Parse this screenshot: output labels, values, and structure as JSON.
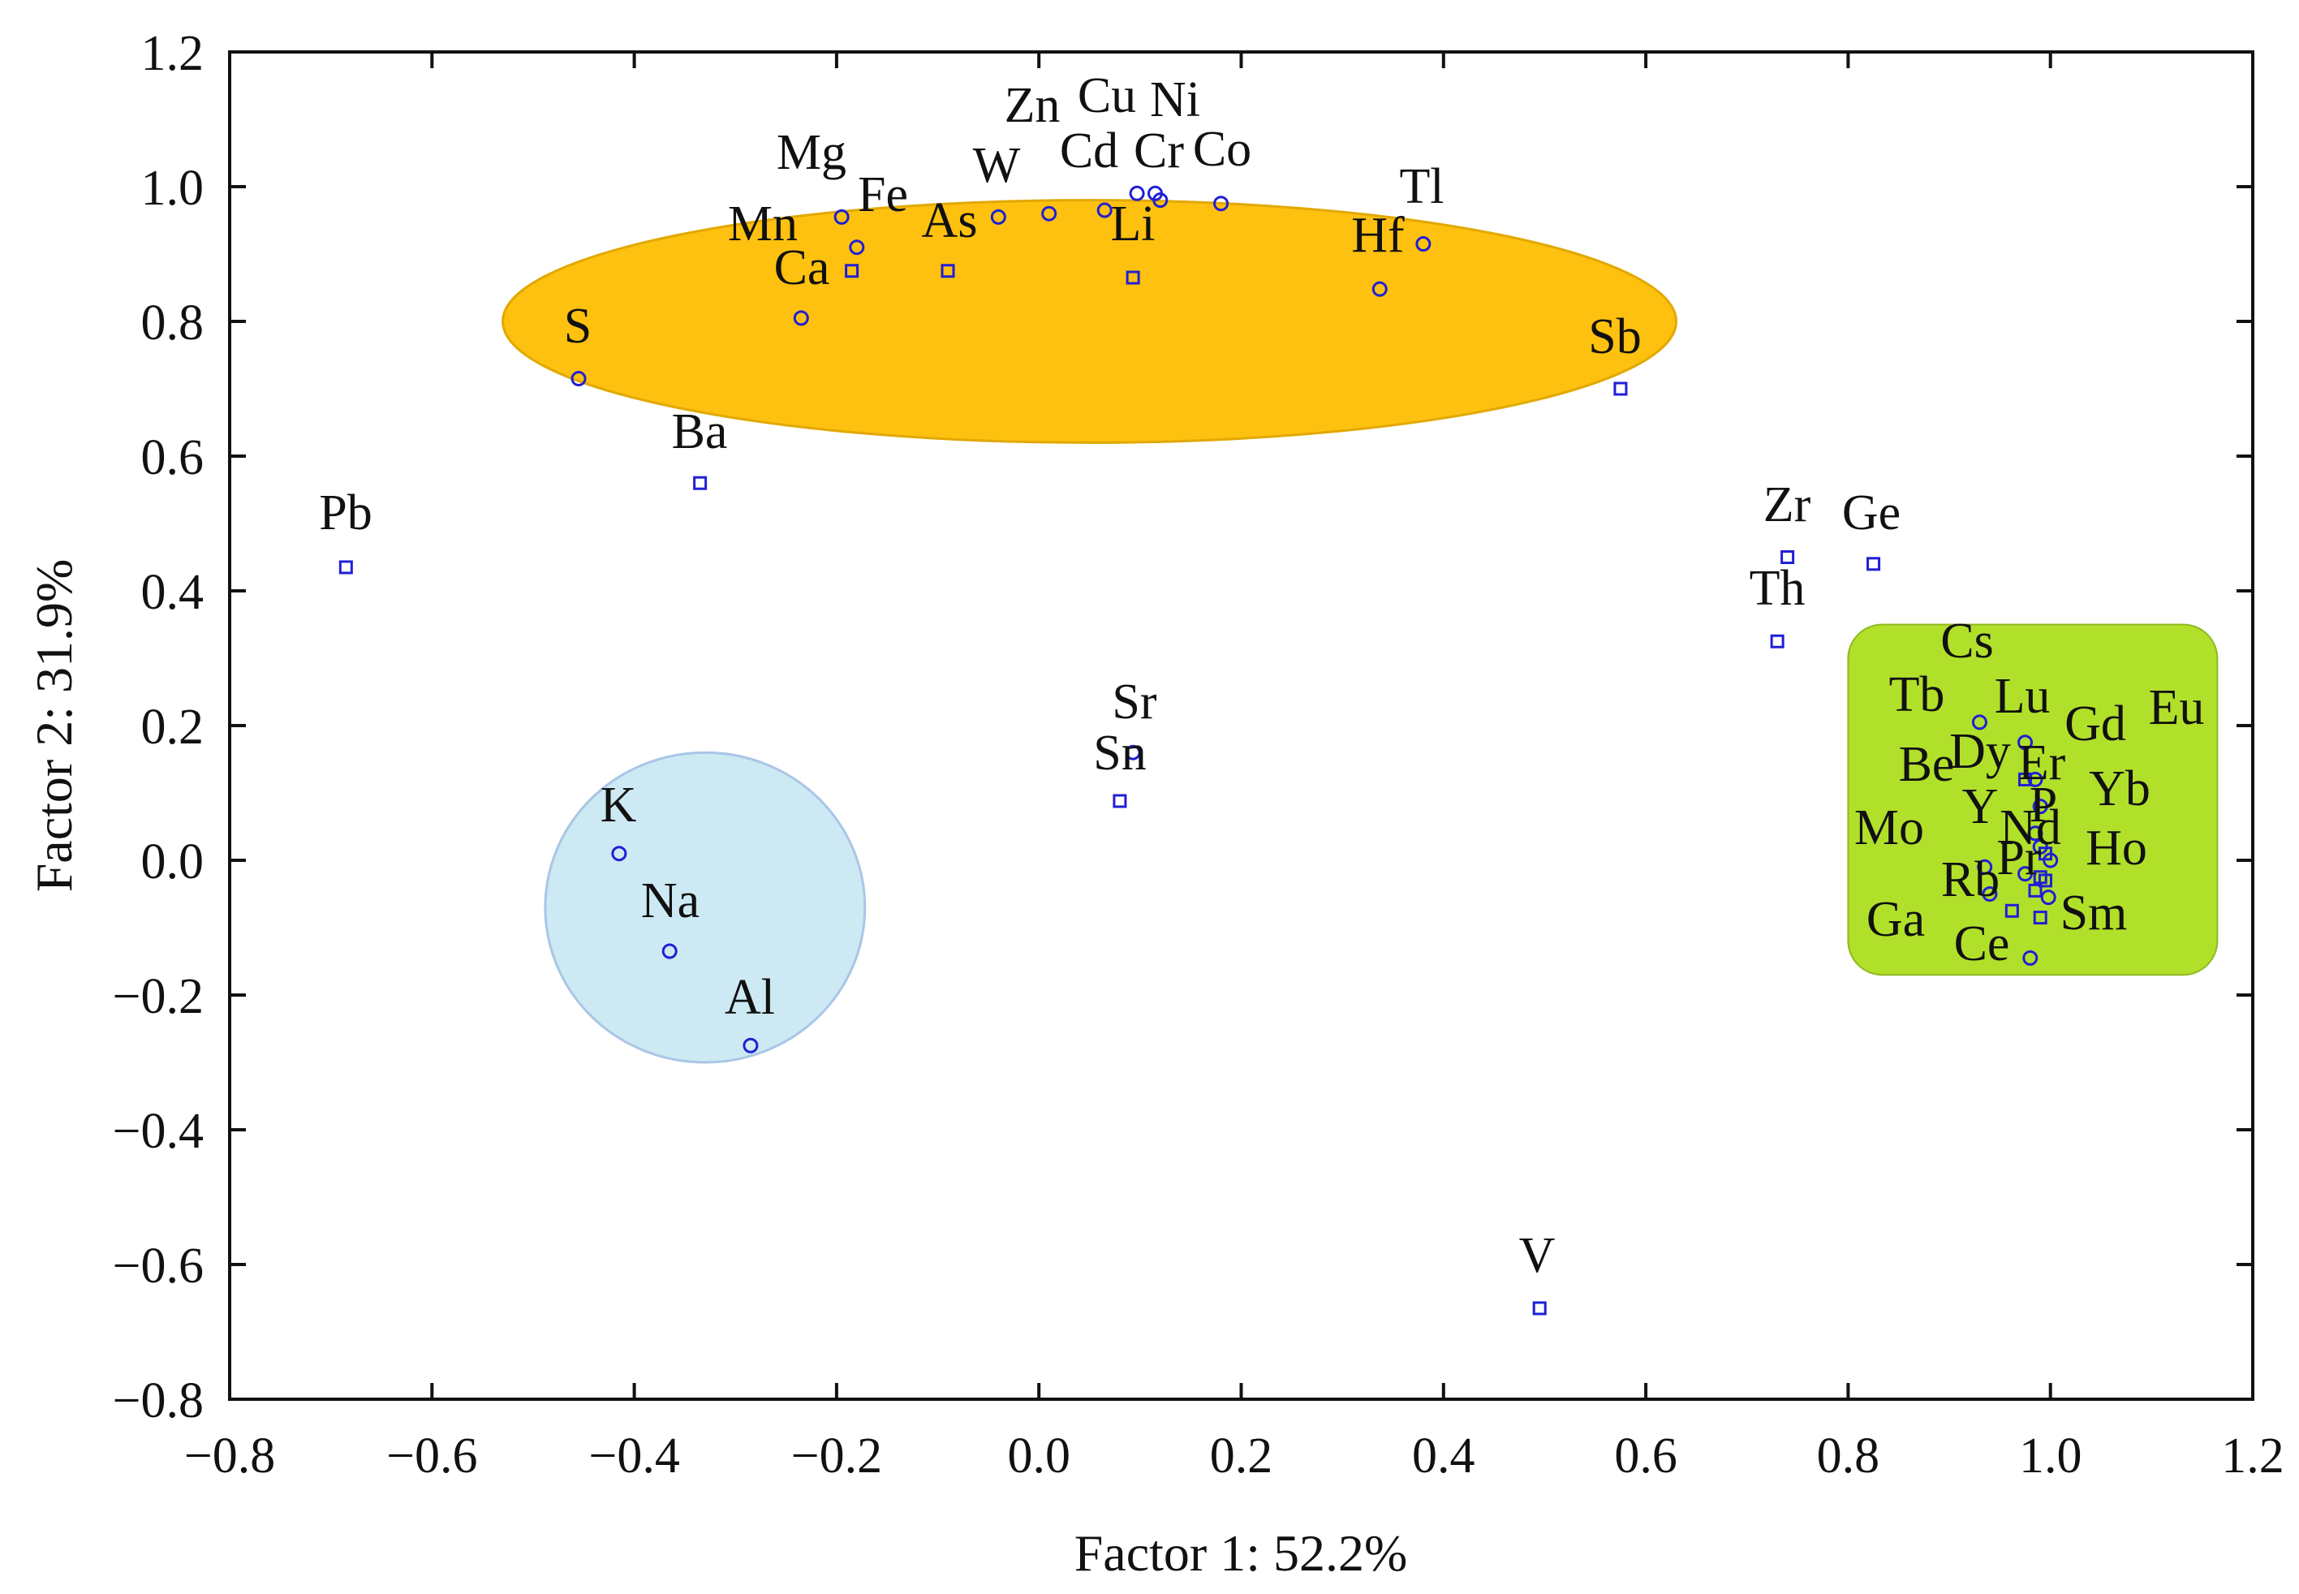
{
  "chart_data": {
    "type": "scatter",
    "xlabel": "Factor 1: 52.2%",
    "ylabel": "Factor 2: 31.9%",
    "xlim": [
      -0.8,
      1.2
    ],
    "ylim": [
      -0.8,
      1.2
    ],
    "x_ticks": [
      "−0.8",
      "−0.6",
      "−0.4",
      "−0.2",
      "0.0",
      "0.2",
      "0.4",
      "0.6",
      "0.8",
      "1.0",
      "1.2"
    ],
    "x_tick_values": [
      -0.8,
      -0.6,
      -0.4,
      -0.2,
      0.0,
      0.2,
      0.4,
      0.6,
      0.8,
      1.0,
      1.2
    ],
    "y_ticks": [
      "−0.8",
      "−0.6",
      "−0.4",
      "−0.2",
      "0.0",
      "0.2",
      "0.4",
      "0.6",
      "0.8",
      "1.0",
      "1.2"
    ],
    "y_tick_values": [
      -0.8,
      -0.6,
      -0.4,
      -0.2,
      0.0,
      0.2,
      0.4,
      0.6,
      0.8,
      1.0,
      1.2
    ],
    "grid": false,
    "marker_color": "#1f1fd6",
    "groups": [
      {
        "shape": "ellipse",
        "color": "#fec10f",
        "center": [
          0.05,
          0.8
        ],
        "radius": [
          0.58,
          0.18
        ]
      },
      {
        "shape": "circle",
        "color": "#cde9f3",
        "center": [
          -0.33,
          -0.07
        ],
        "radius": [
          0.158,
          0.23
        ]
      },
      {
        "shape": "rounded-rectangle",
        "color": "#b1e02a",
        "x_range": [
          0.8,
          1.165
        ],
        "y_range": [
          -0.17,
          0.35
        ]
      }
    ],
    "points": [
      {
        "label": "Zn",
        "x": 0.01,
        "y": 0.96,
        "marker": "circle"
      },
      {
        "label": "Cu",
        "x": 0.115,
        "y": 0.99,
        "marker": "circle"
      },
      {
        "label": "Ni",
        "x": 0.12,
        "y": 0.98,
        "marker": "circle"
      },
      {
        "label": "Cd",
        "x": 0.065,
        "y": 0.965,
        "marker": "circle"
      },
      {
        "label": "Cr",
        "x": 0.097,
        "y": 0.99,
        "marker": "circle"
      },
      {
        "label": "Co",
        "x": 0.18,
        "y": 0.975,
        "marker": "circle"
      },
      {
        "label": "Mg",
        "x": -0.195,
        "y": 0.955,
        "marker": "circle"
      },
      {
        "label": "Fe",
        "x": -0.18,
        "y": 0.91,
        "marker": "circle"
      },
      {
        "label": "W",
        "x": -0.04,
        "y": 0.955,
        "marker": "circle"
      },
      {
        "label": "As",
        "x": -0.09,
        "y": 0.875,
        "marker": "square"
      },
      {
        "label": "Mn",
        "x": -0.185,
        "y": 0.875,
        "marker": "square"
      },
      {
        "label": "Ca",
        "x": -0.235,
        "y": 0.805,
        "marker": "circle"
      },
      {
        "label": "Li",
        "x": 0.093,
        "y": 0.865,
        "marker": "square"
      },
      {
        "label": "Tl",
        "x": 0.38,
        "y": 0.915,
        "marker": "circle"
      },
      {
        "label": "Hf",
        "x": 0.337,
        "y": 0.848,
        "marker": "circle"
      },
      {
        "label": "S",
        "x": -0.455,
        "y": 0.715,
        "marker": "circle"
      },
      {
        "label": "Sb",
        "x": 0.575,
        "y": 0.7,
        "marker": "square"
      },
      {
        "label": "Ba",
        "x": -0.335,
        "y": 0.56,
        "marker": "square"
      },
      {
        "label": "Pb",
        "x": -0.685,
        "y": 0.435,
        "marker": "square"
      },
      {
        "label": "Zr",
        "x": 0.74,
        "y": 0.45,
        "marker": "square"
      },
      {
        "label": "Ge",
        "x": 0.825,
        "y": 0.44,
        "marker": "square"
      },
      {
        "label": "Th",
        "x": 0.73,
        "y": 0.325,
        "marker": "square"
      },
      {
        "label": "Sr",
        "x": 0.093,
        "y": 0.16,
        "marker": "circle"
      },
      {
        "label": "Sn",
        "x": 0.08,
        "y": 0.088,
        "marker": "square"
      },
      {
        "label": "K",
        "x": -0.415,
        "y": 0.01,
        "marker": "circle"
      },
      {
        "label": "Na",
        "x": -0.365,
        "y": -0.135,
        "marker": "circle"
      },
      {
        "label": "Al",
        "x": -0.285,
        "y": -0.275,
        "marker": "circle"
      },
      {
        "label": "V",
        "x": 0.495,
        "y": -0.665,
        "marker": "square"
      },
      {
        "label": "Cs",
        "x": 0.93,
        "y": 0.205,
        "marker": "circle"
      },
      {
        "label": "Tb",
        "x": 0.975,
        "y": 0.175,
        "marker": "circle"
      },
      {
        "label": "Lu",
        "x": 0.985,
        "y": 0.12,
        "marker": "circle"
      },
      {
        "label": "Gd",
        "x": 0.975,
        "y": 0.12,
        "marker": "square"
      },
      {
        "label": "Eu",
        "x": 0.99,
        "y": 0.08,
        "marker": "circle"
      },
      {
        "label": "Be",
        "x": 0.935,
        "y": -0.01,
        "marker": "circle"
      },
      {
        "label": "Dy",
        "x": 0.985,
        "y": 0.04,
        "marker": "circle"
      },
      {
        "label": "Er",
        "x": 0.99,
        "y": 0.02,
        "marker": "circle"
      },
      {
        "label": "P",
        "x": 0.995,
        "y": 0.01,
        "marker": "square"
      },
      {
        "label": "Yb",
        "x": 1.0,
        "y": 0.0,
        "marker": "circle"
      },
      {
        "label": "Y",
        "x": 0.975,
        "y": -0.02,
        "marker": "circle"
      },
      {
        "label": "Nd",
        "x": 0.99,
        "y": -0.025,
        "marker": "square"
      },
      {
        "label": "Mo",
        "x": 0.94,
        "y": -0.05,
        "marker": "circle"
      },
      {
        "label": "Ho",
        "x": 0.998,
        "y": -0.055,
        "marker": "circle"
      },
      {
        "label": "Rb",
        "x": 0.962,
        "y": -0.075,
        "marker": "square"
      },
      {
        "label": "Pr",
        "x": 0.985,
        "y": -0.045,
        "marker": "square"
      },
      {
        "label": "Sm",
        "x": 0.99,
        "y": -0.085,
        "marker": "square"
      },
      {
        "label": "Ga",
        "x": 0.98,
        "y": -0.145,
        "marker": "circle"
      },
      {
        "label": "Ce",
        "x": 0.995,
        "y": -0.03,
        "marker": "square"
      }
    ]
  }
}
